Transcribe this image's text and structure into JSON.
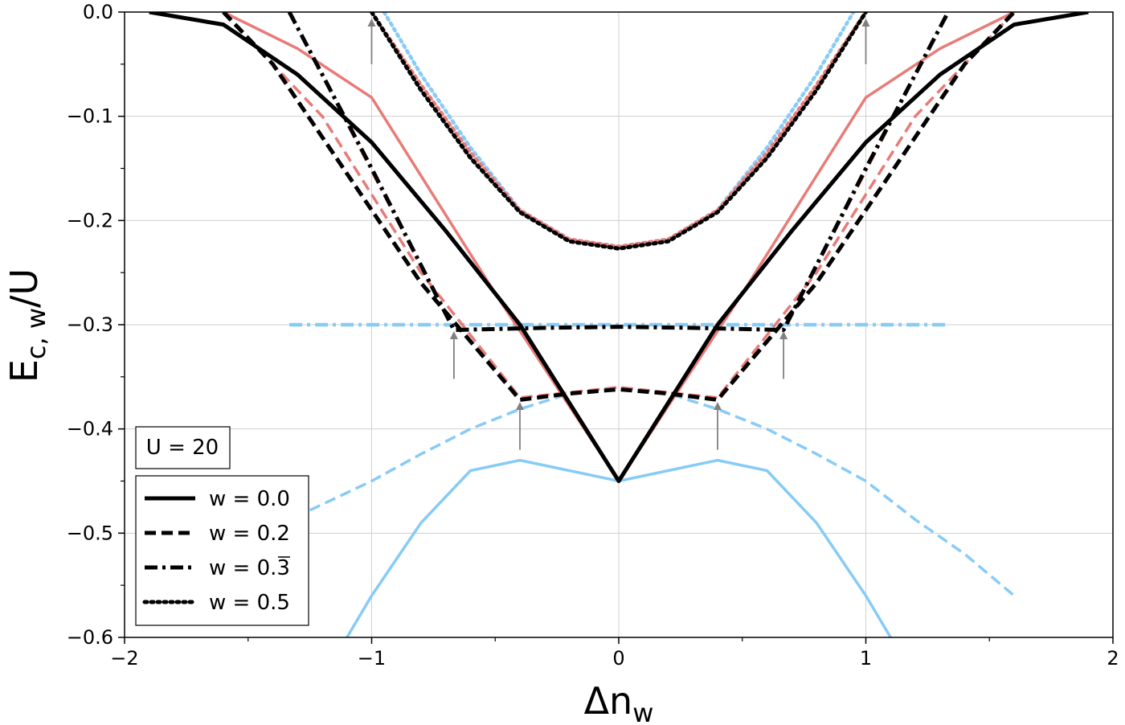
{
  "chart_data": {
    "type": "line",
    "xlabel": "Δn",
    "xlabel_sub": "w",
    "ylabel": "E",
    "ylabel_sub": "c, w",
    "ylabel_suffix": "/U",
    "xlim": [
      -2,
      2
    ],
    "ylim": [
      -0.6,
      0.0
    ],
    "xticks": [
      -2,
      -1,
      0,
      1,
      2
    ],
    "xtick_labels": [
      "−2",
      "−1",
      "0",
      "1",
      "2"
    ],
    "yticks": [
      0.0,
      -0.1,
      -0.2,
      -0.3,
      -0.4,
      -0.5,
      -0.6
    ],
    "ytick_labels": [
      "0.0",
      "−0.1",
      "−0.2",
      "−0.3",
      "−0.4",
      "−0.5",
      "−0.6"
    ],
    "grid": true,
    "annotation": "U = 20",
    "legend_position": "lower-left",
    "legend": [
      {
        "label": "w = 0.0",
        "style": "solid"
      },
      {
        "label": "w = 0.2",
        "style": "dashed"
      },
      {
        "label": "w = 0.3",
        "overline_last": true,
        "style": "dashdot"
      },
      {
        "label": "w = 0.5",
        "style": "dotted"
      }
    ],
    "colors": {
      "black": "#000000",
      "red": "#e87b78",
      "blue": "#87cbf7",
      "arrow": "#808080",
      "grid": "#cfcfcf"
    },
    "arrows": [
      {
        "x": -1.0,
        "y_from": -0.05,
        "y_to": -0.01
      },
      {
        "x": 1.0,
        "y_from": -0.05,
        "y_to": -0.01
      },
      {
        "x": -0.667,
        "y_from": -0.352,
        "y_to": -0.31
      },
      {
        "x": 0.667,
        "y_from": -0.352,
        "y_to": -0.31
      },
      {
        "x": -0.4,
        "y_from": -0.42,
        "y_to": -0.378
      },
      {
        "x": 0.4,
        "y_from": -0.42,
        "y_to": -0.378
      }
    ],
    "series": [
      {
        "name": "blue-w0",
        "color": "blue",
        "style": "solid",
        "width": 3.5,
        "x": [
          -1.1,
          -1.0,
          -0.8,
          -0.6,
          -0.4,
          -0.2,
          0.0,
          0.2,
          0.4,
          0.6,
          0.8,
          1.0,
          1.1
        ],
        "y": [
          -0.6,
          -0.56,
          -0.49,
          -0.44,
          -0.43,
          -0.44,
          -0.45,
          -0.44,
          -0.43,
          -0.44,
          -0.49,
          -0.56,
          -0.6
        ]
      },
      {
        "name": "blue-w0.2",
        "color": "blue",
        "style": "dashed",
        "width": 3.5,
        "x": [
          -1.25,
          -1.0,
          -0.8,
          -0.6,
          -0.4,
          -0.2,
          0.0,
          0.2,
          0.4,
          0.6,
          0.8,
          1.0,
          1.2,
          1.4,
          1.6
        ],
        "y": [
          -0.478,
          -0.45,
          -0.424,
          -0.4,
          -0.381,
          -0.366,
          -0.36,
          -0.366,
          -0.381,
          -0.4,
          -0.424,
          -0.45,
          -0.487,
          -0.52,
          -0.56
        ]
      },
      {
        "name": "blue-w0.33",
        "color": "blue",
        "style": "dashdot",
        "width": 4.5,
        "x": [
          -1.333,
          1.333
        ],
        "y": [
          -0.3,
          -0.3
        ]
      },
      {
        "name": "blue-w0.5",
        "color": "blue",
        "style": "dotted",
        "width": 4.5,
        "x": [
          -0.95,
          -0.8,
          -0.6,
          -0.4,
          -0.2,
          0.0,
          0.2,
          0.4,
          0.6,
          0.8,
          0.95
        ],
        "y": [
          0.0,
          -0.06,
          -0.13,
          -0.19,
          -0.218,
          -0.225,
          -0.218,
          -0.19,
          -0.13,
          -0.06,
          0.0
        ]
      },
      {
        "name": "red-w0",
        "color": "red",
        "style": "solid",
        "width": 3.5,
        "x": [
          -1.6,
          -1.3,
          -1.0,
          -0.5,
          0.0,
          0.5,
          1.0,
          1.3,
          1.6
        ],
        "y": [
          0.0,
          -0.035,
          -0.082,
          -0.27,
          -0.45,
          -0.27,
          -0.082,
          -0.035,
          0.0
        ]
      },
      {
        "name": "red-w0.2",
        "color": "red",
        "style": "dashed",
        "width": 3.5,
        "x": [
          -1.6,
          -1.2,
          -0.8,
          -0.4,
          -0.2,
          0.0,
          0.2,
          0.4,
          0.8,
          1.2,
          1.6
        ],
        "y": [
          0.0,
          -0.1,
          -0.25,
          -0.37,
          -0.365,
          -0.36,
          -0.365,
          -0.37,
          -0.25,
          -0.1,
          0.0
        ]
      },
      {
        "name": "red-w0.33",
        "color": "red",
        "style": "dashdot",
        "width": 3.5,
        "x": [
          -1.333,
          -0.667,
          0.0,
          0.667,
          1.333
        ],
        "y": [
          0.0,
          -0.305,
          -0.302,
          -0.305,
          0.0
        ]
      },
      {
        "name": "red-w0.5",
        "color": "red",
        "style": "dotted",
        "width": 4.5,
        "x": [
          -1.0,
          -0.8,
          -0.6,
          -0.4,
          -0.2,
          0.0,
          0.2,
          0.4,
          0.6,
          0.8,
          1.0
        ],
        "y": [
          0.0,
          -0.07,
          -0.135,
          -0.19,
          -0.218,
          -0.225,
          -0.218,
          -0.19,
          -0.135,
          -0.07,
          0.0
        ]
      },
      {
        "name": "black-w0",
        "color": "black",
        "style": "solid",
        "width": 5,
        "x": [
          -1.9,
          -1.6,
          -1.3,
          -1.0,
          -0.7,
          -0.4,
          0.0,
          0.4,
          0.7,
          1.0,
          1.3,
          1.6,
          1.9
        ],
        "y": [
          0.0,
          -0.012,
          -0.06,
          -0.125,
          -0.21,
          -0.3,
          -0.45,
          -0.3,
          -0.21,
          -0.125,
          -0.06,
          -0.012,
          0.0
        ]
      },
      {
        "name": "black-w0.2",
        "color": "black",
        "style": "dashed",
        "width": 5,
        "x": [
          -1.6,
          -1.4,
          -1.2,
          -0.8,
          -0.4,
          -0.2,
          0.0,
          0.2,
          0.4,
          0.8,
          1.2,
          1.4,
          1.6
        ],
        "y": [
          0.0,
          -0.05,
          -0.12,
          -0.26,
          -0.372,
          -0.366,
          -0.362,
          -0.366,
          -0.372,
          -0.26,
          -0.12,
          -0.05,
          0.0
        ]
      },
      {
        "name": "black-w0.33",
        "color": "black",
        "style": "dashdot",
        "width": 5,
        "x": [
          -1.333,
          -1.0,
          -0.667,
          -0.3,
          0.0,
          0.3,
          0.667,
          1.0,
          1.333
        ],
        "y": [
          0.0,
          -0.15,
          -0.305,
          -0.303,
          -0.302,
          -0.303,
          -0.305,
          -0.15,
          0.0
        ]
      },
      {
        "name": "black-w0.5",
        "color": "black",
        "style": "dotted",
        "width": 5,
        "x": [
          -1.0,
          -0.8,
          -0.6,
          -0.4,
          -0.2,
          0.0,
          0.2,
          0.4,
          0.6,
          0.8,
          1.0
        ],
        "y": [
          0.0,
          -0.075,
          -0.14,
          -0.192,
          -0.22,
          -0.227,
          -0.22,
          -0.192,
          -0.14,
          -0.075,
          0.0
        ]
      }
    ]
  }
}
